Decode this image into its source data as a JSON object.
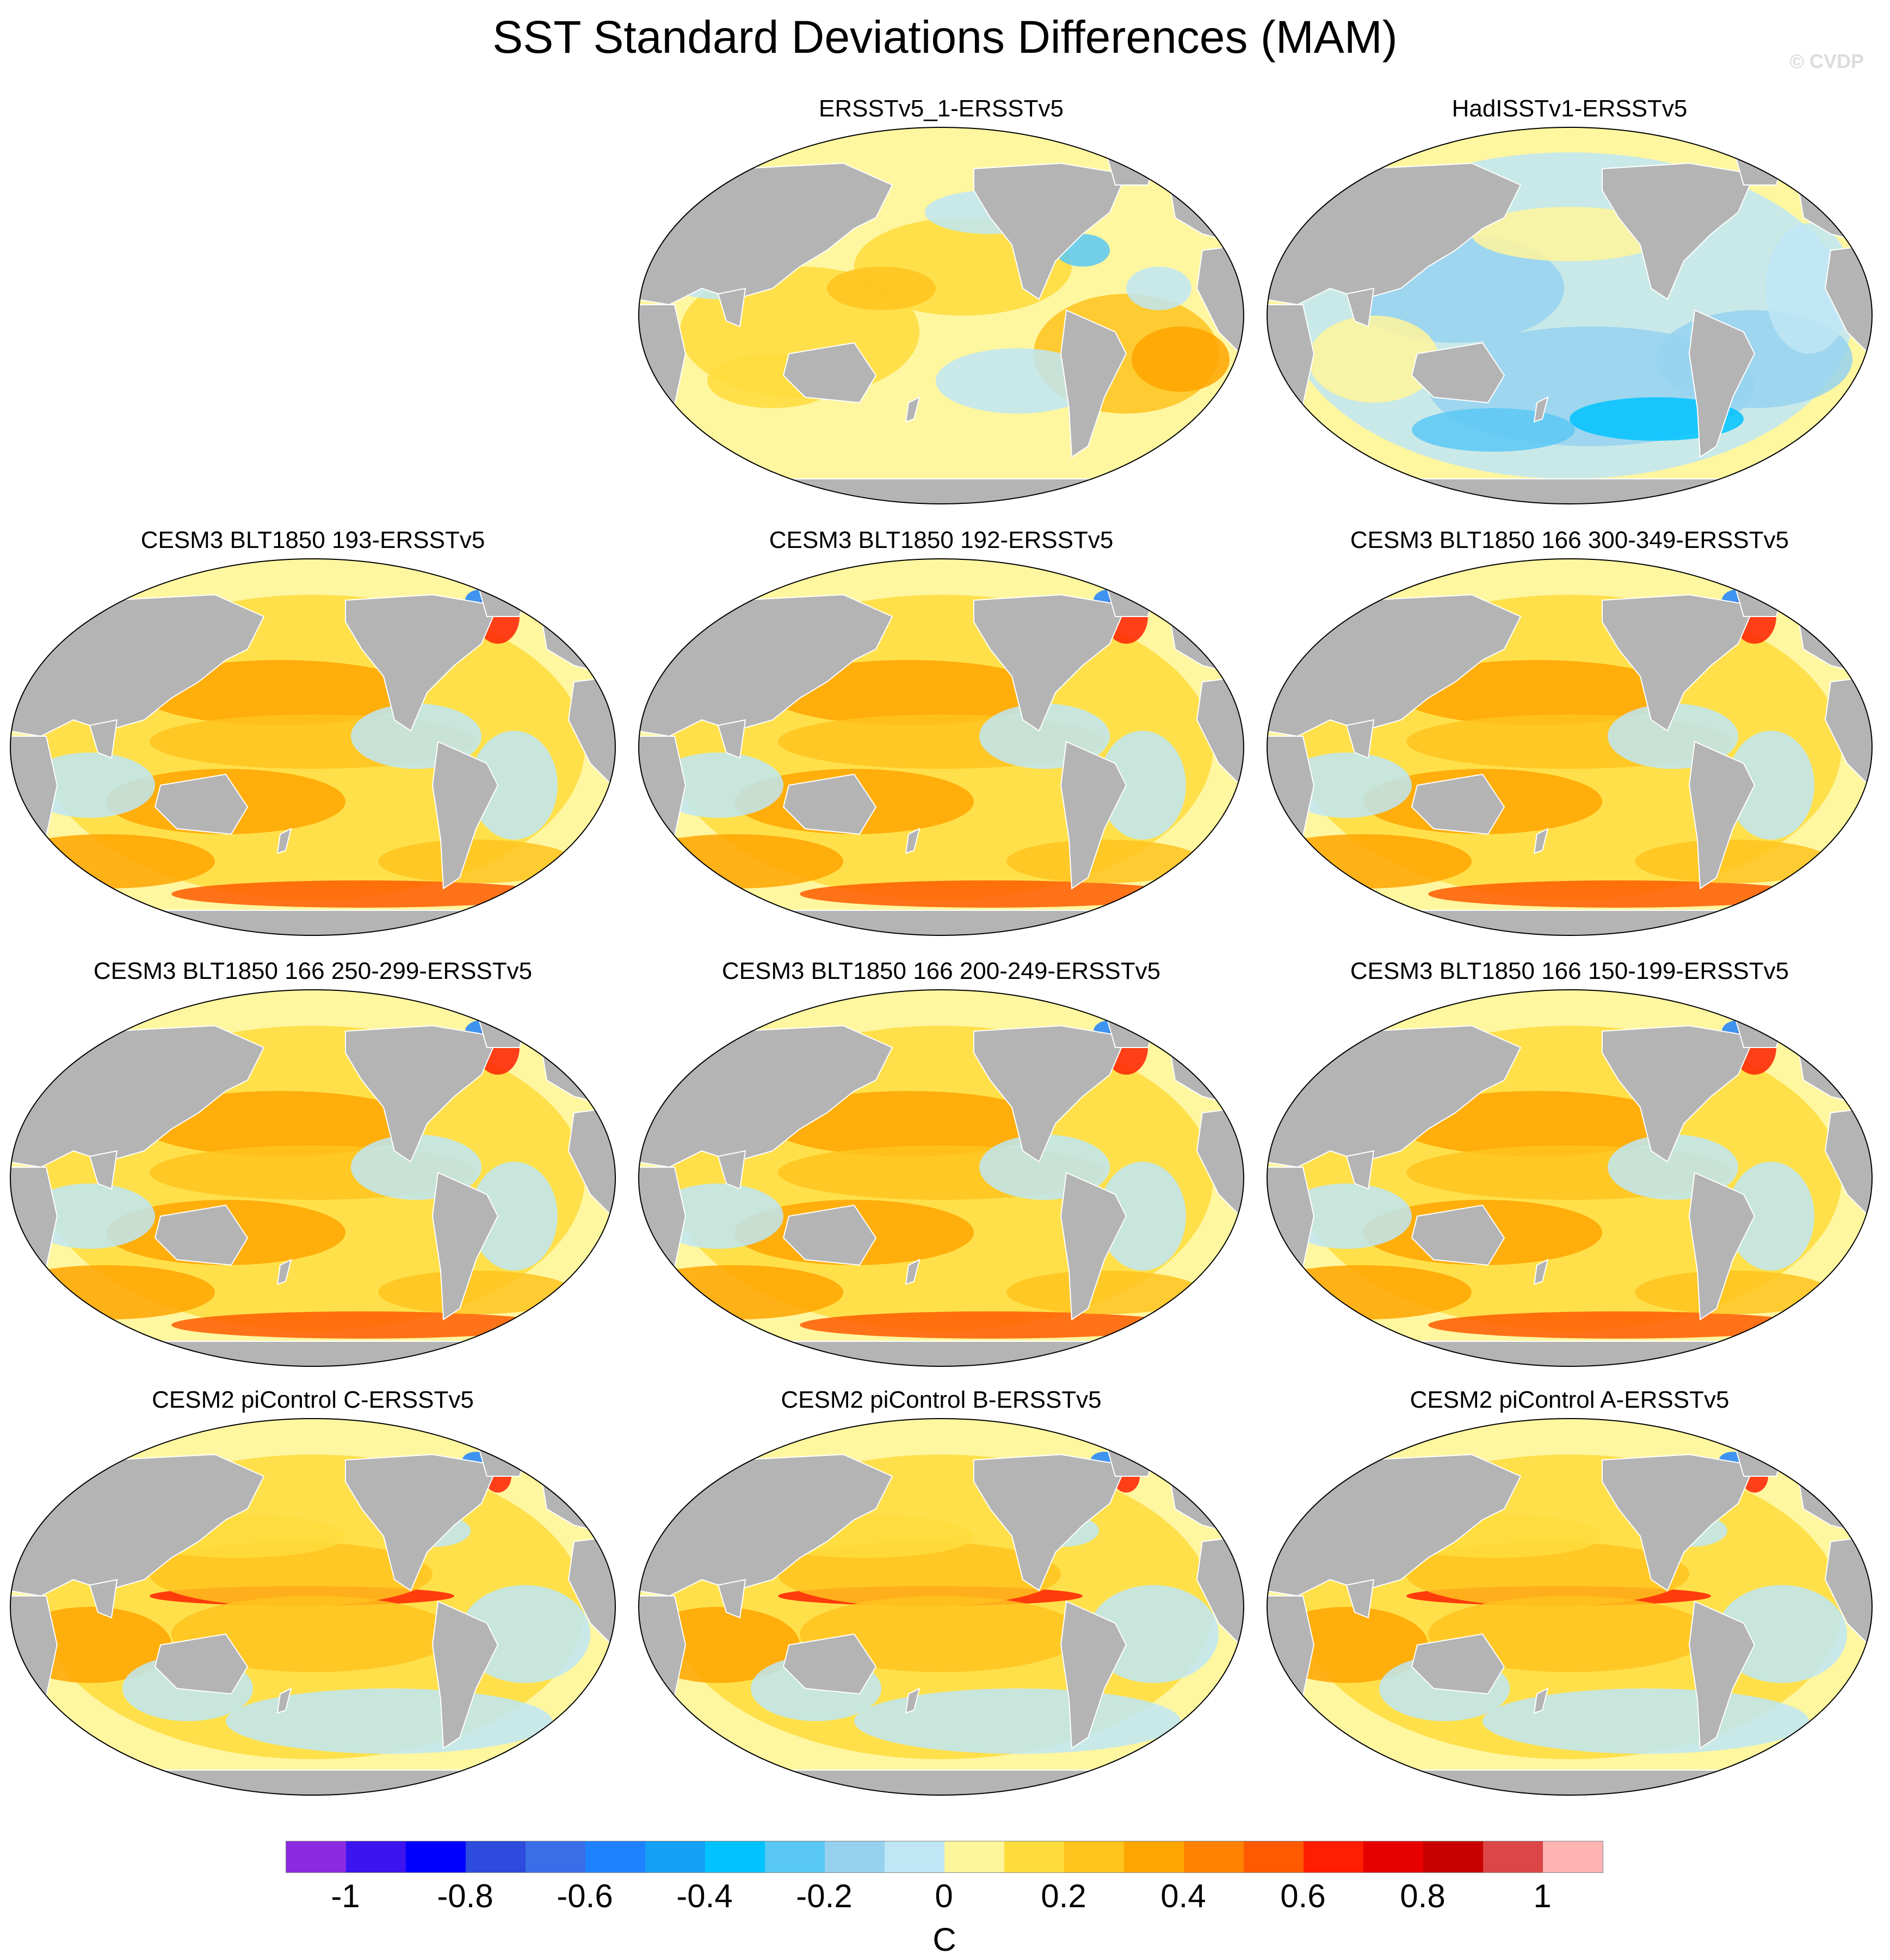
{
  "figure": {
    "title": "SST Standard Deviations Differences (MAM)",
    "credit": "© CVDP",
    "units": "C"
  },
  "colors": {
    "land": "#b4b4b4",
    "ocean_base": "#fff6a0",
    "outline": "#000000"
  },
  "panels": [
    {
      "title": "ERSSTv5_1-ERSSTv5",
      "pattern": "mixed"
    },
    {
      "title": "HadISSTv1-ERSSTv5",
      "pattern": "negative"
    },
    {
      "title": "CESM3 BLT1850 193-ERSSTv5",
      "pattern": "positive"
    },
    {
      "title": "CESM3 BLT1850 192-ERSSTv5",
      "pattern": "positive"
    },
    {
      "title": "CESM3 BLT1850 166 300-349-ERSSTv5",
      "pattern": "positive"
    },
    {
      "title": "CESM3 BLT1850 166 250-299-ERSSTv5",
      "pattern": "positive"
    },
    {
      "title": "CESM3 BLT1850 166 200-249-ERSSTv5",
      "pattern": "positive"
    },
    {
      "title": "CESM3 BLT1850 166 150-199-ERSSTv5",
      "pattern": "positive"
    },
    {
      "title": "CESM2 piControl C-ERSSTv5",
      "pattern": "enso"
    },
    {
      "title": "CESM2 piControl B-ERSSTv5",
      "pattern": "enso"
    },
    {
      "title": "CESM2 piControl A-ERSSTv5",
      "pattern": "enso"
    }
  ],
  "colorbar": {
    "colors": [
      "#8a2be2",
      "#3c14f0",
      "#0000ff",
      "#2d4bdc",
      "#3a6ee8",
      "#1e82ff",
      "#14a0f5",
      "#00c3ff",
      "#5ac8f5",
      "#96d2f0",
      "#bee6f5",
      "#fff59b",
      "#ffdc3c",
      "#ffc31e",
      "#ffa500",
      "#ff8200",
      "#ff5a00",
      "#ff1e00",
      "#e60000",
      "#c80000",
      "#dc4646",
      "#ffb4b4"
    ],
    "labels": [
      "-1",
      "-0.8",
      "-0.6",
      "-0.4",
      "-0.2",
      "0",
      "0.2",
      "0.4",
      "0.6",
      "0.8",
      "1"
    ],
    "min": -1.1,
    "max": 1.1
  }
}
